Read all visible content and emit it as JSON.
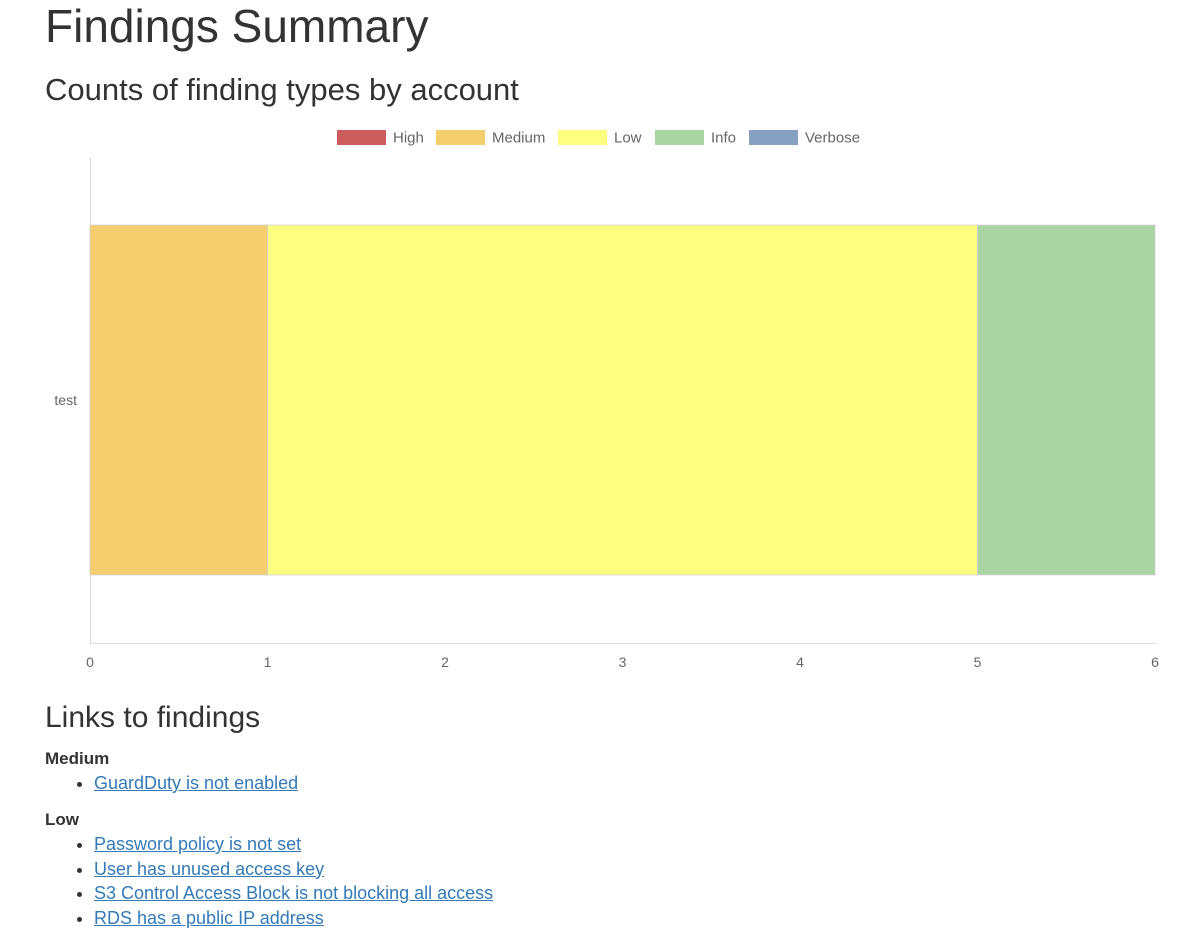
{
  "page": {
    "title": "Findings Summary",
    "chart_heading": "Counts of finding types by account",
    "links_heading": "Links to findings"
  },
  "legend": [
    {
      "label": "High",
      "color": "#cd5c5c"
    },
    {
      "label": "Medium",
      "color": "#f4cd6c"
    },
    {
      "label": "Low",
      "color": "#fefe80"
    },
    {
      "label": "Info",
      "color": "#a8d5a2"
    },
    {
      "label": "Verbose",
      "color": "#86a0c2"
    }
  ],
  "chart_data": {
    "type": "bar",
    "orientation": "horizontal",
    "stacked": true,
    "categories": [
      "test"
    ],
    "series": [
      {
        "name": "High",
        "values": [
          0
        ],
        "color": "#cd5c5c"
      },
      {
        "name": "Medium",
        "values": [
          1
        ],
        "color": "#f4cd6c"
      },
      {
        "name": "Low",
        "values": [
          4
        ],
        "color": "#fefe80"
      },
      {
        "name": "Info",
        "values": [
          1
        ],
        "color": "#a8d5a2"
      },
      {
        "name": "Verbose",
        "values": [
          0
        ],
        "color": "#86a0c2"
      }
    ],
    "xlim": [
      0,
      6
    ],
    "xticks": [
      "0",
      "1",
      "2",
      "3",
      "4",
      "5",
      "6"
    ],
    "legend_position": "top",
    "grid": false
  },
  "findings": {
    "medium": {
      "title": "Medium",
      "items": [
        "GuardDuty is not enabled"
      ]
    },
    "low": {
      "title": "Low",
      "items": [
        "Password policy is not set",
        "User has unused access key",
        "S3 Control Access Block is not blocking all access",
        "RDS has a public IP address"
      ]
    }
  }
}
